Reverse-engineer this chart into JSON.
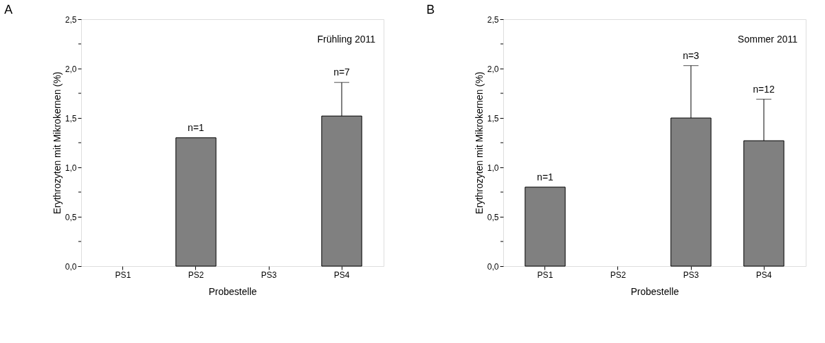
{
  "chart_data": [
    {
      "type": "bar",
      "title": "A",
      "xlabel": "Probestelle",
      "ylabel": "Erythrozyten mit Mikrokernen (%)",
      "categories": [
        "PS1",
        "PS2",
        "PS3",
        "PS4"
      ],
      "values": [
        null,
        1.3,
        null,
        1.52
      ],
      "color": "#808080",
      "errors": [
        null,
        null,
        null,
        [
          1.52,
          1.86
        ]
      ],
      "ylim": [
        0,
        2.5
      ],
      "yticks": [
        {
          "value": 0,
          "label": "0,0"
        },
        {
          "value": 0.25,
          "label": null
        },
        {
          "value": 0.5,
          "label": "0,5"
        },
        {
          "value": 0.75,
          "label": null
        },
        {
          "value": 1.0,
          "label": "1,0"
        },
        {
          "value": 1.25,
          "label": null
        },
        {
          "value": 1.5,
          "label": "1,5"
        },
        {
          "value": 1.75,
          "label": null
        },
        {
          "value": 2.0,
          "label": "2,0"
        },
        {
          "value": 2.25,
          "label": null
        },
        {
          "value": 2.5,
          "label": "2,5"
        }
      ],
      "grid": false,
      "annotations": [
        {
          "text": "n=1",
          "x": "PS2",
          "y": 1.3
        },
        {
          "text": "n=7",
          "x": "PS4",
          "y": 1.86
        },
        "Frühling 2011"
      ]
    },
    {
      "type": "bar",
      "title": "B",
      "xlabel": "Probestelle",
      "ylabel": "Erythrozyten mit Mikrokernen (%)",
      "categories": [
        "PS1",
        "PS2",
        "PS3",
        "PS4"
      ],
      "values": [
        0.8,
        null,
        1.5,
        1.27
      ],
      "color": "#808080",
      "errors": [
        null,
        null,
        [
          1.5,
          2.03
        ],
        [
          1.27,
          1.69
        ]
      ],
      "ylim": [
        0,
        2.5
      ],
      "yticks": [
        {
          "value": 0,
          "label": "0,0"
        },
        {
          "value": 0.25,
          "label": null
        },
        {
          "value": 0.5,
          "label": "0,5"
        },
        {
          "value": 0.75,
          "label": null
        },
        {
          "value": 1.0,
          "label": "1,0"
        },
        {
          "value": 1.25,
          "label": null
        },
        {
          "value": 1.5,
          "label": "1,5"
        },
        {
          "value": 1.75,
          "label": null
        },
        {
          "value": 2.0,
          "label": "2,0"
        },
        {
          "value": 2.25,
          "label": null
        },
        {
          "value": 2.5,
          "label": "2,5"
        }
      ],
      "grid": false,
      "annotations": [
        {
          "text": "n=1",
          "x": "PS1",
          "y": 0.8
        },
        {
          "text": "n=3",
          "x": "PS3",
          "y": 2.03
        },
        {
          "text": "n=12",
          "x": "PS4",
          "y": 1.69
        },
        "Sommer 2011"
      ]
    }
  ]
}
